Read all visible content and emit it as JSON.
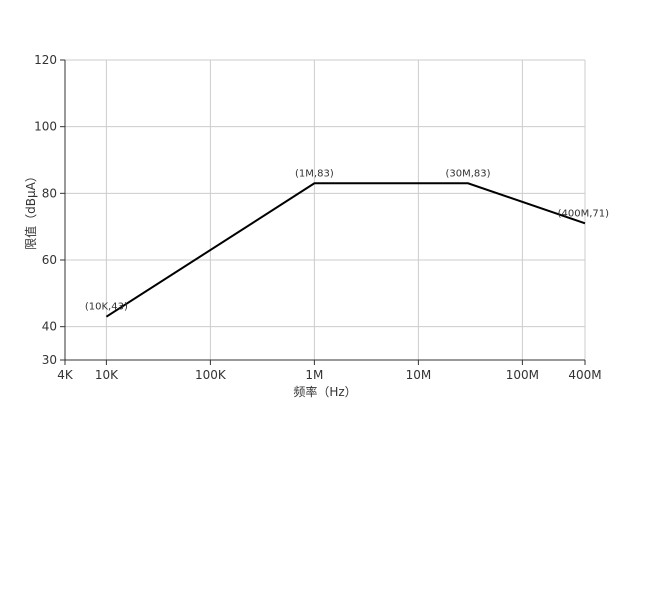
{
  "chart_data": {
    "type": "line",
    "xlabel": "频率（Hz）",
    "ylabel": "限值（dBμA）",
    "xscale": "log",
    "xlim": [
      4000,
      400000000
    ],
    "ylim": [
      30,
      120
    ],
    "grid": true,
    "x_ticks": [
      {
        "value": 4000,
        "label": "4K"
      },
      {
        "value": 10000,
        "label": "10K"
      },
      {
        "value": 100000,
        "label": "100K"
      },
      {
        "value": 1000000,
        "label": "1M"
      },
      {
        "value": 10000000,
        "label": "10M"
      },
      {
        "value": 100000000,
        "label": "100M"
      },
      {
        "value": 400000000,
        "label": "400M"
      }
    ],
    "y_ticks": [
      30,
      40,
      60,
      80,
      100,
      120
    ],
    "series": [
      {
        "color": "#000000",
        "points": [
          {
            "x": 10000,
            "y": 43,
            "label": "(10K,43)"
          },
          {
            "x": 1000000,
            "y": 83,
            "label": "(1M,83)"
          },
          {
            "x": 30000000,
            "y": 83,
            "label": "(30M,83)"
          },
          {
            "x": 400000000,
            "y": 71,
            "label": "(400M,71)"
          }
        ]
      }
    ]
  }
}
